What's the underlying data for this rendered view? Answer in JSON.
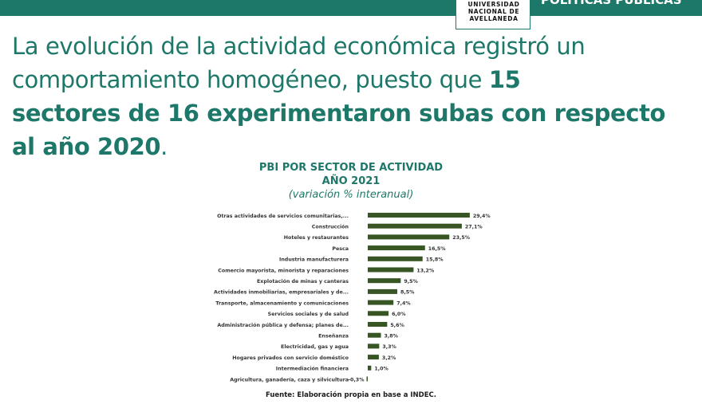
{
  "header": {
    "logo_lines": [
      "UNIVERSIDAD",
      "NACIONAL DE",
      "AVELLANEDA"
    ],
    "section_label": "POLÍTICAS PÚBLICAS"
  },
  "headline": {
    "line1": "La evolución de la actividad económica registró un",
    "line2_plain": "comportamiento homogéneo, puesto que ",
    "line2_bold": "15",
    "line3_bold": "sectores de 16 experimentaron subas con respecto",
    "line4_bold": "al año 2020",
    "line4_end": "."
  },
  "chart_data": {
    "type": "bar",
    "orientation": "horizontal",
    "title": "PBI POR SECTOR DE ACTIVIDAD",
    "title_line2": "AÑO 2021",
    "subtitle": "(variación % interanual)",
    "bar_color": "#375623",
    "categories": [
      "Otras actividades de servicios comunitarias,...",
      "Construcción",
      "Hoteles y restaurantes",
      "Pesca",
      "Industria manufacturera",
      "Comercio mayorista, minorista y reparaciones",
      "Explotación de minas y canteras",
      "Actividades inmobiliarias, empresariales y de...",
      "Transporte, almacenamiento y comunicaciones",
      "Servicios sociales y de salud",
      "Administración pública y defensa; planes de...",
      "Enseñanza",
      "Electricidad, gas y agua",
      "Hogares privados con servicio doméstico",
      "Intermediación financiera",
      "Agricultura, ganadería, caza y silvicultura"
    ],
    "values": [
      29.4,
      27.1,
      23.5,
      16.5,
      15.8,
      13.2,
      9.5,
      8.5,
      7.4,
      6.0,
      5.6,
      3.8,
      3.3,
      3.2,
      1.0,
      -0.3
    ],
    "value_labels": [
      "29,4%",
      "27,1%",
      "23,5%",
      "16,5%",
      "15,8%",
      "13,2%",
      "9,5%",
      "8,5%",
      "7,4%",
      "6,0%",
      "5,6%",
      "3,8%",
      "3,3%",
      "3,2%",
      "1,0%",
      "-0,3%"
    ]
  },
  "source": "Fuente: Elaboración propia en base a INDEC."
}
